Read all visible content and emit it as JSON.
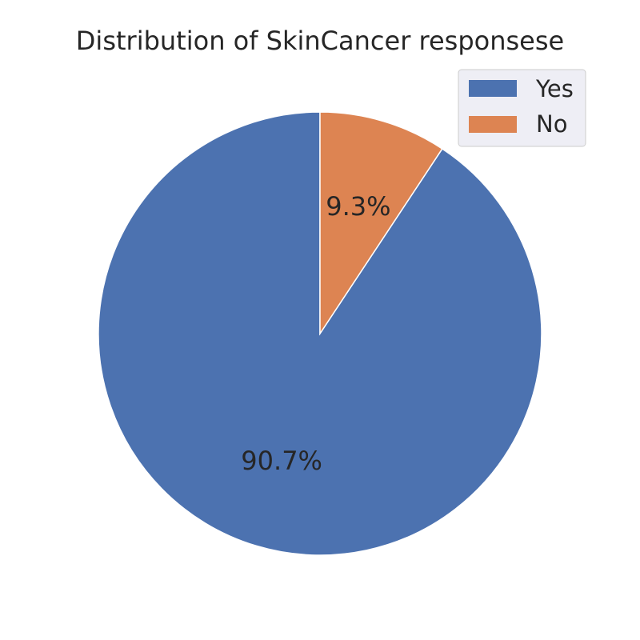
{
  "chart_data": {
    "type": "pie",
    "title": "Distribution of SkinCancer responsese",
    "categories": [
      "Yes",
      "No"
    ],
    "values": [
      90.7,
      9.3
    ],
    "labels": [
      "90.7%",
      "9.3%"
    ],
    "colors": [
      "#4c72b0",
      "#dd8452"
    ],
    "start_angle_deg": 90,
    "direction": "counterclockwise",
    "legend": {
      "placement": "top-right",
      "entries": [
        "Yes",
        "No"
      ]
    }
  }
}
